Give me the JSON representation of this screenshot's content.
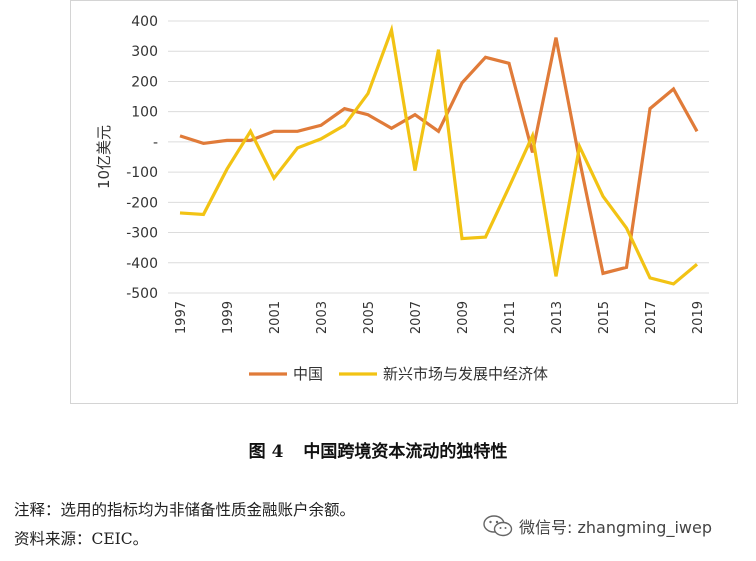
{
  "chart_data": {
    "type": "line",
    "ylabel": "10亿美元",
    "xlabel": "",
    "ylim": [
      -500,
      400
    ],
    "yticks": [
      {
        "value": 400,
        "label": "400"
      },
      {
        "value": 300,
        "label": "300"
      },
      {
        "value": 200,
        "label": "200"
      },
      {
        "value": 100,
        "label": "100"
      },
      {
        "value": 0,
        "label": "-"
      },
      {
        "value": -100,
        "label": "-100"
      },
      {
        "value": -200,
        "label": "-200"
      },
      {
        "value": -300,
        "label": "-300"
      },
      {
        "value": -400,
        "label": "-400"
      },
      {
        "value": -500,
        "label": "-500"
      }
    ],
    "x": [
      1997,
      1998,
      1999,
      2000,
      2001,
      2002,
      2003,
      2004,
      2005,
      2006,
      2007,
      2008,
      2009,
      2010,
      2011,
      2012,
      2013,
      2014,
      2015,
      2016,
      2017,
      2018,
      2019
    ],
    "xtick_labels": [
      "1997",
      "1999",
      "2001",
      "2003",
      "2005",
      "2007",
      "2009",
      "2011",
      "2013",
      "2015",
      "2017",
      "2019"
    ],
    "grid": true,
    "legend_position": "bottom",
    "series": [
      {
        "name": "中国",
        "color": "#e07b39",
        "values": [
          20,
          -5,
          5,
          5,
          35,
          35,
          55,
          110,
          90,
          45,
          90,
          35,
          195,
          280,
          260,
          -35,
          345,
          -60,
          -435,
          -415,
          110,
          175,
          35
        ]
      },
      {
        "name": "新兴市场与发展中经济体",
        "color": "#f2c314",
        "values": [
          -235,
          -240,
          -90,
          35,
          -120,
          -20,
          10,
          55,
          160,
          370,
          -95,
          305,
          -320,
          -315,
          -150,
          20,
          -445,
          -15,
          -180,
          -285,
          -450,
          -470,
          -405
        ]
      }
    ]
  },
  "caption": {
    "number": "图 4",
    "title": "中国跨境资本流动的独特性"
  },
  "note": "注释：选用的指标均为非储备性质金融账户余额。",
  "source": "资料来源：CEIC。",
  "watermark": {
    "icon": "wechat-icon",
    "text": "微信号: zhangming_iwep"
  }
}
